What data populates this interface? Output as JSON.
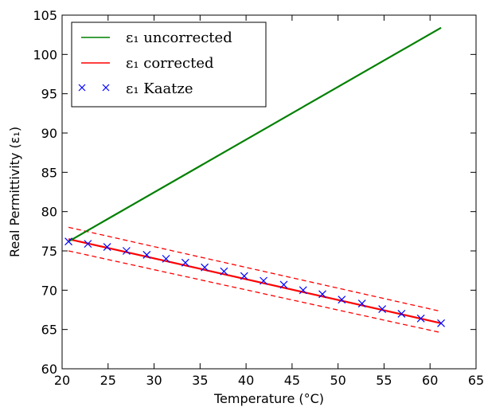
{
  "chart_data": {
    "type": "line",
    "xlabel": "Temperature (°C)",
    "ylabel": "Real Permittivity (ε₁)",
    "xlim": [
      20,
      65
    ],
    "ylim": [
      60,
      105
    ],
    "xticks": [
      20,
      25,
      30,
      35,
      40,
      45,
      50,
      55,
      60,
      65
    ],
    "yticks": [
      60,
      65,
      70,
      75,
      80,
      85,
      90,
      95,
      100,
      105
    ],
    "grid": false,
    "legend_position": "top-left",
    "series": [
      {
        "name": "ε₁ uncorrected",
        "style": "line",
        "color": "#008000",
        "x": [
          20.7,
          61.2
        ],
        "y": [
          76.2,
          103.4
        ]
      },
      {
        "name": "ε₁ corrected",
        "style": "line",
        "color": "#ff0000",
        "x": [
          20.7,
          61.2
        ],
        "y": [
          76.5,
          65.8
        ]
      },
      {
        "name": "",
        "style": "dashed",
        "color": "#ff0000",
        "x": [
          20.7,
          61.2
        ],
        "y": [
          78.0,
          67.3
        ]
      },
      {
        "name": "",
        "style": "dashed",
        "color": "#ff0000",
        "x": [
          20.7,
          61.2
        ],
        "y": [
          75.0,
          64.6
        ]
      },
      {
        "name": "ε₁ Kaatze",
        "style": "marker-x",
        "color": "#0000ff",
        "x": [
          20.7,
          22.8,
          24.9,
          27.0,
          29.2,
          31.3,
          33.4,
          35.5,
          37.6,
          39.8,
          41.9,
          44.1,
          46.2,
          48.3,
          50.4,
          52.6,
          54.8,
          56.9,
          59.0,
          61.2
        ],
        "y": [
          76.2,
          75.9,
          75.5,
          75.0,
          74.5,
          74.0,
          73.5,
          72.9,
          72.4,
          71.8,
          71.2,
          70.7,
          70.0,
          69.5,
          68.8,
          68.3,
          67.6,
          67.0,
          66.4,
          65.8
        ]
      }
    ]
  }
}
